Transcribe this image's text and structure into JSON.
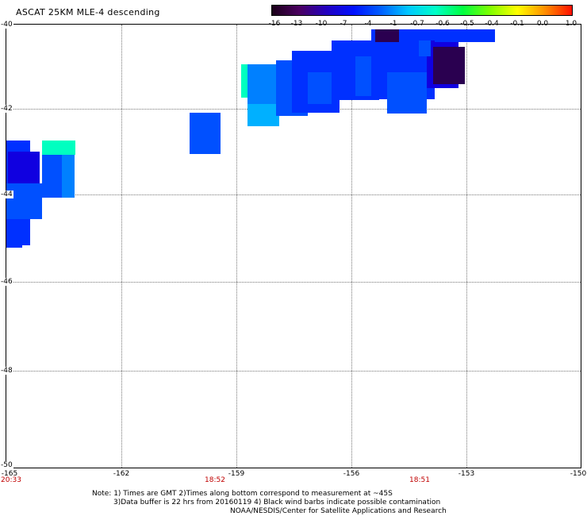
{
  "title": "ASCAT 25KM MLE-4 descending",
  "colorbar": {
    "ticks": [
      "-16",
      "-13",
      "-10",
      "-7",
      "-4",
      "-1",
      "-0.7",
      "-0.6",
      "-0.5",
      "-0.4",
      "-0.1",
      "0.0",
      "1.0"
    ],
    "colors": [
      "#1a0018",
      "#4b0060",
      "#2200c0",
      "#0010ff",
      "#0060ff",
      "#00c8ff",
      "#00ffc8",
      "#00ff40",
      "#80ff00",
      "#ffff00",
      "#ff9000",
      "#ff1000"
    ]
  },
  "map": {
    "lon_range": [
      -165,
      -150
    ],
    "lat_range": [
      -50,
      -40
    ],
    "lat_labels": [
      "-40",
      "-42",
      "-44",
      "-46",
      "-48",
      "-50"
    ],
    "lon_labels": [
      "-165",
      "-162",
      "-159",
      "-156",
      "-153",
      "-150"
    ],
    "time_labels": [
      "20:33",
      "18:52",
      "18:51"
    ],
    "swath_colors": {
      "dark": "#2a0050",
      "purple": "#3800a0",
      "deepblue": "#1000e0",
      "blue": "#0030ff",
      "mid": "#0050ff",
      "light": "#0080ff",
      "cyan": "#00b0ff",
      "teal": "#00ffc0"
    }
  },
  "notes": {
    "line1": "Note: 1) Times are GMT 2)Times along bottom correspond to measurement at ~45S",
    "line2": "3)Data buffer is 22 hrs from 20160119 4) Black wind barbs indicate possible contamination",
    "line3": "NOAA/NESDIS/Center for Satellite Applications and Research"
  }
}
